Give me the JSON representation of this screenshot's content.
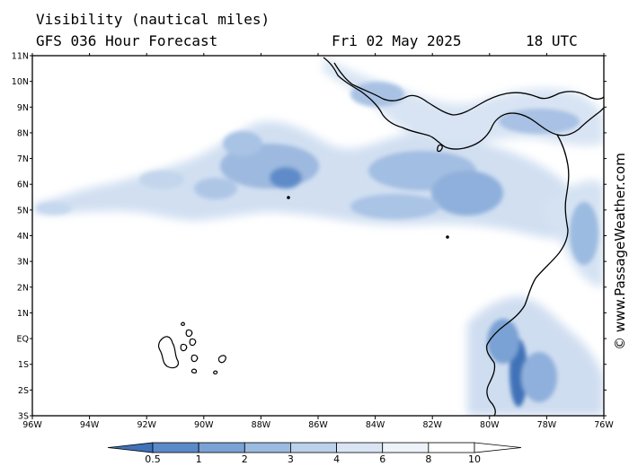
{
  "header": {
    "title": "Visibility (nautical miles)",
    "subtitle": "GFS 036 Hour Forecast",
    "date": "Fri 02 May 2025",
    "time": "18 UTC"
  },
  "credit": "© www.PassageWeather.com",
  "map": {
    "lat_labels": [
      "11N",
      "10N",
      "9N",
      "8N",
      "7N",
      "6N",
      "5N",
      "4N",
      "3N",
      "2N",
      "1N",
      "EQ",
      "1S",
      "2S",
      "3S"
    ],
    "lon_labels": [
      "96W",
      "94W",
      "92W",
      "90W",
      "88W",
      "86W",
      "84W",
      "82W",
      "80W",
      "78W",
      "76W"
    ],
    "lon_range": [
      -96,
      -76
    ],
    "lat_range": [
      -3,
      11
    ]
  },
  "legend": {
    "ticks": [
      "0.5",
      "1",
      "2",
      "3",
      "4",
      "6",
      "8",
      "10"
    ],
    "colors": [
      "#3f72b8",
      "#5a8ac8",
      "#7aa2d4",
      "#9bbbe0",
      "#bcd1ea",
      "#d9e5f4",
      "#eef3fa",
      "#ffffff"
    ]
  }
}
